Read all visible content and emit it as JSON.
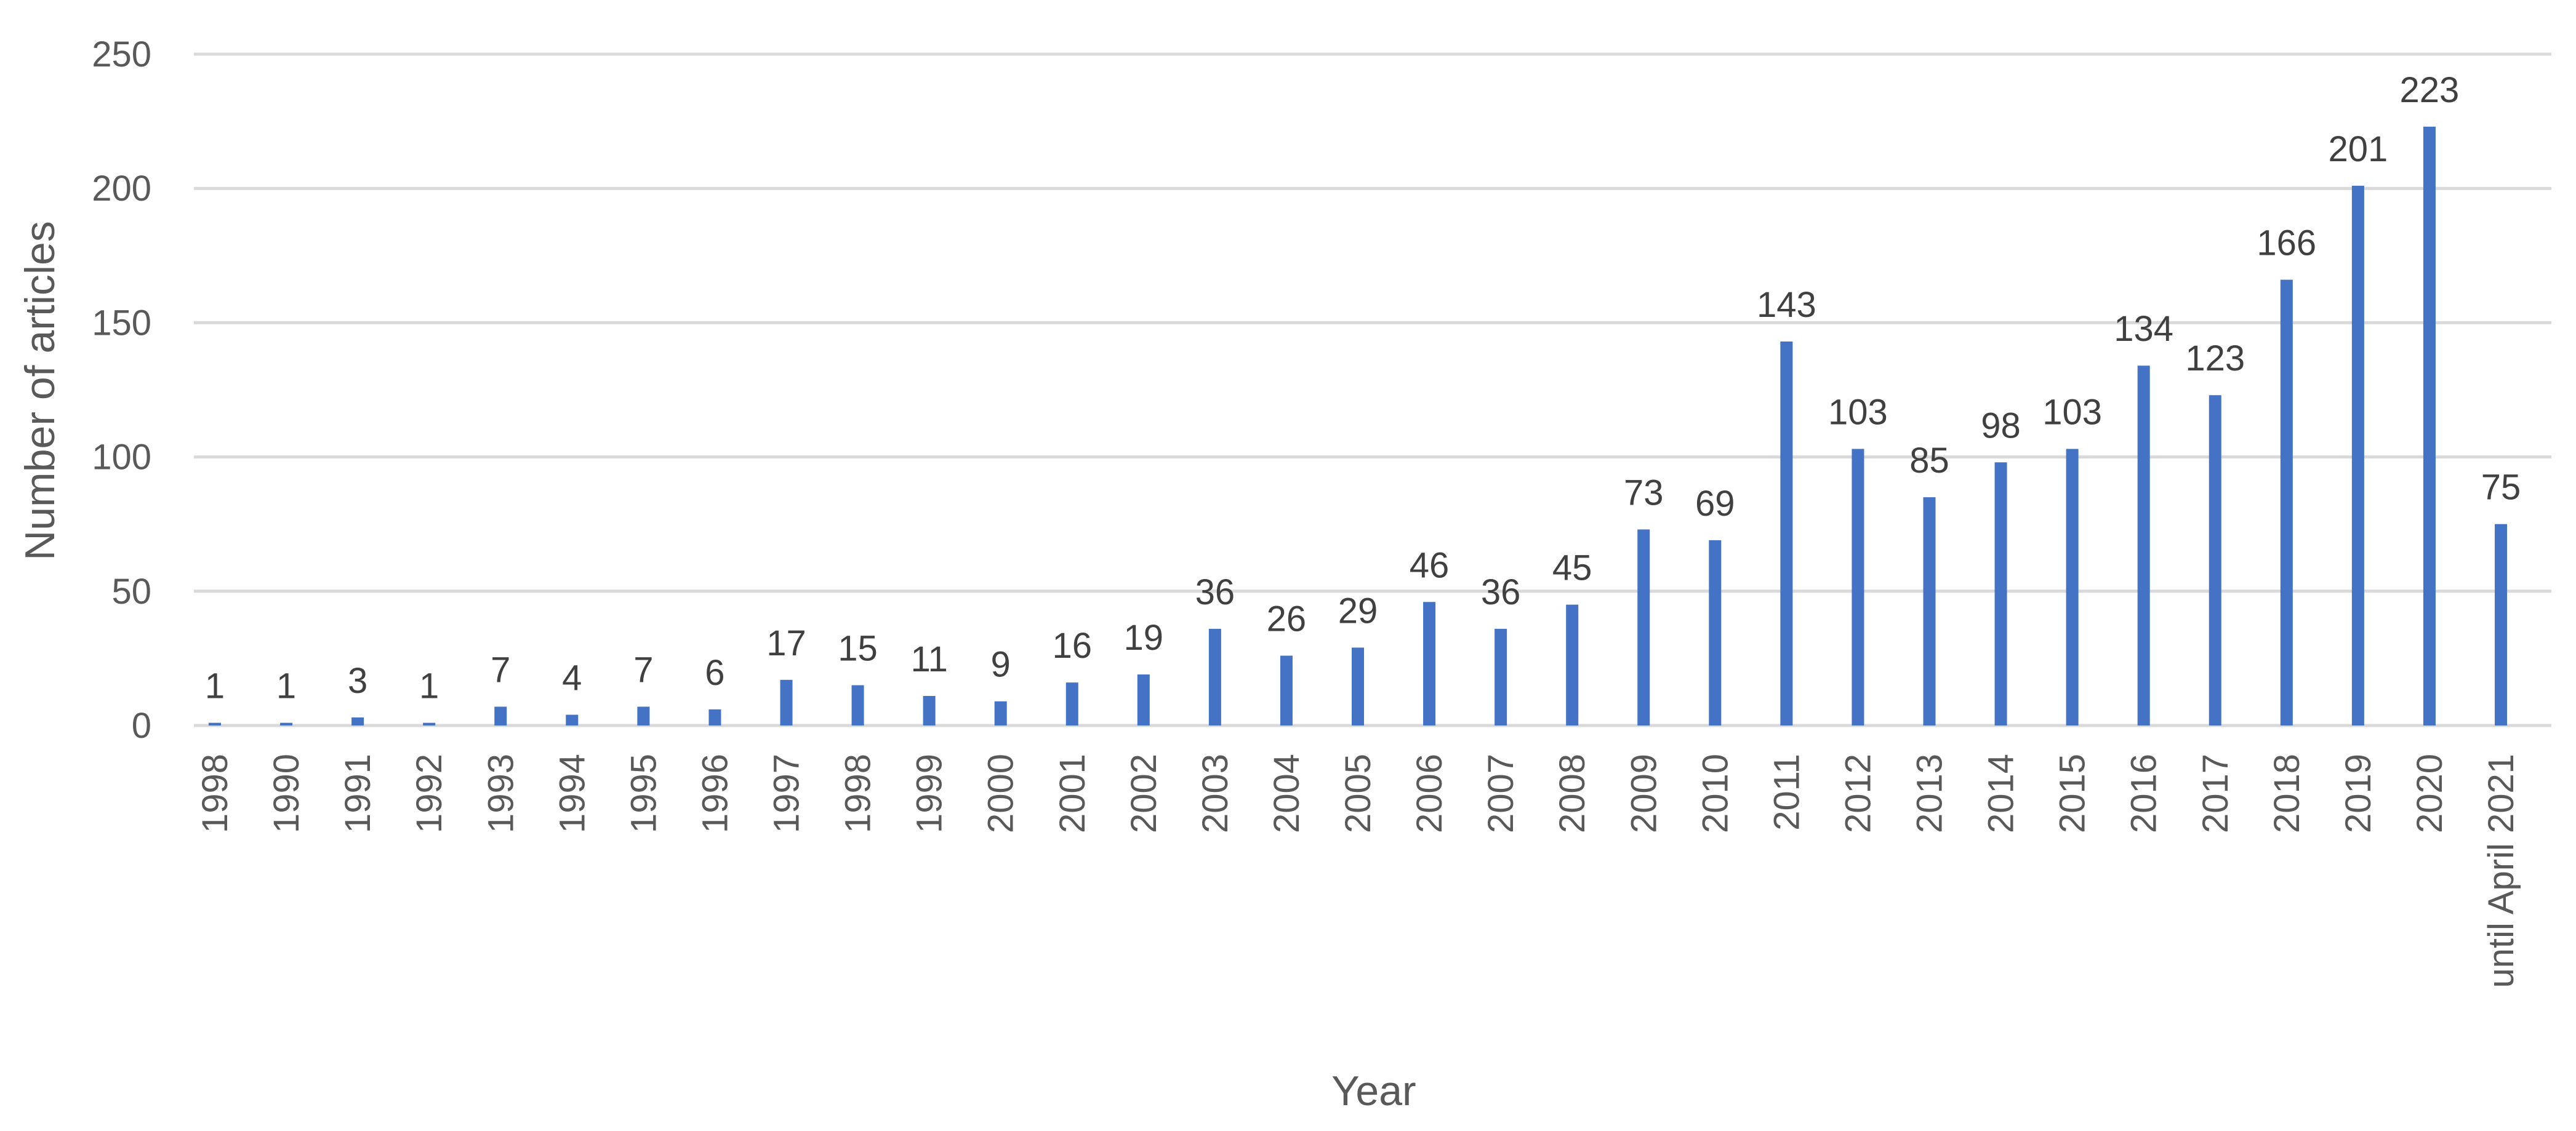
{
  "chart_data": {
    "type": "bar",
    "xlabel": "Year",
    "ylabel": "Number of articles",
    "ylim": [
      0,
      250
    ],
    "yticks": [
      0,
      50,
      100,
      150,
      200,
      250
    ],
    "grid": true,
    "legend": "none",
    "bar_color": "#4472c4",
    "categories": [
      "1998",
      "1990",
      "1991",
      "1992",
      "1993",
      "1994",
      "1995",
      "1996",
      "1997",
      "1998",
      "1999",
      "2000",
      "2001",
      "2002",
      "2003",
      "2004",
      "2005",
      "2006",
      "2007",
      "2008",
      "2009",
      "2010",
      "2011",
      "2012",
      "2013",
      "2014",
      "2015",
      "2016",
      "2017",
      "2018",
      "2019",
      "2020",
      "until April 2021"
    ],
    "values": [
      1,
      1,
      3,
      1,
      7,
      4,
      7,
      6,
      17,
      15,
      11,
      9,
      16,
      19,
      36,
      26,
      29,
      46,
      36,
      45,
      73,
      69,
      143,
      103,
      85,
      98,
      103,
      134,
      123,
      166,
      201,
      223,
      75
    ]
  }
}
